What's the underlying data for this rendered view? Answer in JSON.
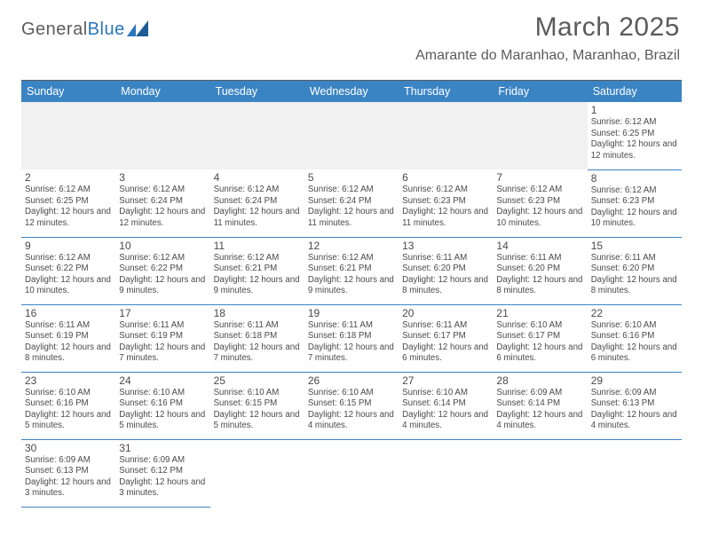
{
  "logo": {
    "part1": "General",
    "part2": "Blue"
  },
  "title": "March 2025",
  "subtitle": "Amarante do Maranhao, Maranhao, Brazil",
  "colors": {
    "header_bg": "#3b84c4",
    "header_text": "#ffffff",
    "border": "#3b84c4",
    "text": "#4a4a4a",
    "logo_gray": "#5c5c5c",
    "logo_blue": "#2a75bb",
    "title_color": "#5b5b5b"
  },
  "day_headers": [
    "Sunday",
    "Monday",
    "Tuesday",
    "Wednesday",
    "Thursday",
    "Friday",
    "Saturday"
  ],
  "weeks": [
    [
      null,
      null,
      null,
      null,
      null,
      null,
      {
        "n": "1",
        "sr": "Sunrise: 6:12 AM",
        "ss": "Sunset: 6:25 PM",
        "dl": "Daylight: 12 hours and 12 minutes."
      }
    ],
    [
      {
        "n": "2",
        "sr": "Sunrise: 6:12 AM",
        "ss": "Sunset: 6:25 PM",
        "dl": "Daylight: 12 hours and 12 minutes."
      },
      {
        "n": "3",
        "sr": "Sunrise: 6:12 AM",
        "ss": "Sunset: 6:24 PM",
        "dl": "Daylight: 12 hours and 12 minutes."
      },
      {
        "n": "4",
        "sr": "Sunrise: 6:12 AM",
        "ss": "Sunset: 6:24 PM",
        "dl": "Daylight: 12 hours and 11 minutes."
      },
      {
        "n": "5",
        "sr": "Sunrise: 6:12 AM",
        "ss": "Sunset: 6:24 PM",
        "dl": "Daylight: 12 hours and 11 minutes."
      },
      {
        "n": "6",
        "sr": "Sunrise: 6:12 AM",
        "ss": "Sunset: 6:23 PM",
        "dl": "Daylight: 12 hours and 11 minutes."
      },
      {
        "n": "7",
        "sr": "Sunrise: 6:12 AM",
        "ss": "Sunset: 6:23 PM",
        "dl": "Daylight: 12 hours and 10 minutes."
      },
      {
        "n": "8",
        "sr": "Sunrise: 6:12 AM",
        "ss": "Sunset: 6:23 PM",
        "dl": "Daylight: 12 hours and 10 minutes."
      }
    ],
    [
      {
        "n": "9",
        "sr": "Sunrise: 6:12 AM",
        "ss": "Sunset: 6:22 PM",
        "dl": "Daylight: 12 hours and 10 minutes."
      },
      {
        "n": "10",
        "sr": "Sunrise: 6:12 AM",
        "ss": "Sunset: 6:22 PM",
        "dl": "Daylight: 12 hours and 9 minutes."
      },
      {
        "n": "11",
        "sr": "Sunrise: 6:12 AM",
        "ss": "Sunset: 6:21 PM",
        "dl": "Daylight: 12 hours and 9 minutes."
      },
      {
        "n": "12",
        "sr": "Sunrise: 6:12 AM",
        "ss": "Sunset: 6:21 PM",
        "dl": "Daylight: 12 hours and 9 minutes."
      },
      {
        "n": "13",
        "sr": "Sunrise: 6:11 AM",
        "ss": "Sunset: 6:20 PM",
        "dl": "Daylight: 12 hours and 8 minutes."
      },
      {
        "n": "14",
        "sr": "Sunrise: 6:11 AM",
        "ss": "Sunset: 6:20 PM",
        "dl": "Daylight: 12 hours and 8 minutes."
      },
      {
        "n": "15",
        "sr": "Sunrise: 6:11 AM",
        "ss": "Sunset: 6:20 PM",
        "dl": "Daylight: 12 hours and 8 minutes."
      }
    ],
    [
      {
        "n": "16",
        "sr": "Sunrise: 6:11 AM",
        "ss": "Sunset: 6:19 PM",
        "dl": "Daylight: 12 hours and 8 minutes."
      },
      {
        "n": "17",
        "sr": "Sunrise: 6:11 AM",
        "ss": "Sunset: 6:19 PM",
        "dl": "Daylight: 12 hours and 7 minutes."
      },
      {
        "n": "18",
        "sr": "Sunrise: 6:11 AM",
        "ss": "Sunset: 6:18 PM",
        "dl": "Daylight: 12 hours and 7 minutes."
      },
      {
        "n": "19",
        "sr": "Sunrise: 6:11 AM",
        "ss": "Sunset: 6:18 PM",
        "dl": "Daylight: 12 hours and 7 minutes."
      },
      {
        "n": "20",
        "sr": "Sunrise: 6:11 AM",
        "ss": "Sunset: 6:17 PM",
        "dl": "Daylight: 12 hours and 6 minutes."
      },
      {
        "n": "21",
        "sr": "Sunrise: 6:10 AM",
        "ss": "Sunset: 6:17 PM",
        "dl": "Daylight: 12 hours and 6 minutes."
      },
      {
        "n": "22",
        "sr": "Sunrise: 6:10 AM",
        "ss": "Sunset: 6:16 PM",
        "dl": "Daylight: 12 hours and 6 minutes."
      }
    ],
    [
      {
        "n": "23",
        "sr": "Sunrise: 6:10 AM",
        "ss": "Sunset: 6:16 PM",
        "dl": "Daylight: 12 hours and 5 minutes."
      },
      {
        "n": "24",
        "sr": "Sunrise: 6:10 AM",
        "ss": "Sunset: 6:16 PM",
        "dl": "Daylight: 12 hours and 5 minutes."
      },
      {
        "n": "25",
        "sr": "Sunrise: 6:10 AM",
        "ss": "Sunset: 6:15 PM",
        "dl": "Daylight: 12 hours and 5 minutes."
      },
      {
        "n": "26",
        "sr": "Sunrise: 6:10 AM",
        "ss": "Sunset: 6:15 PM",
        "dl": "Daylight: 12 hours and 4 minutes."
      },
      {
        "n": "27",
        "sr": "Sunrise: 6:10 AM",
        "ss": "Sunset: 6:14 PM",
        "dl": "Daylight: 12 hours and 4 minutes."
      },
      {
        "n": "28",
        "sr": "Sunrise: 6:09 AM",
        "ss": "Sunset: 6:14 PM",
        "dl": "Daylight: 12 hours and 4 minutes."
      },
      {
        "n": "29",
        "sr": "Sunrise: 6:09 AM",
        "ss": "Sunset: 6:13 PM",
        "dl": "Daylight: 12 hours and 4 minutes."
      }
    ],
    [
      {
        "n": "30",
        "sr": "Sunrise: 6:09 AM",
        "ss": "Sunset: 6:13 PM",
        "dl": "Daylight: 12 hours and 3 minutes."
      },
      {
        "n": "31",
        "sr": "Sunrise: 6:09 AM",
        "ss": "Sunset: 6:12 PM",
        "dl": "Daylight: 12 hours and 3 minutes."
      },
      null,
      null,
      null,
      null,
      null
    ]
  ]
}
